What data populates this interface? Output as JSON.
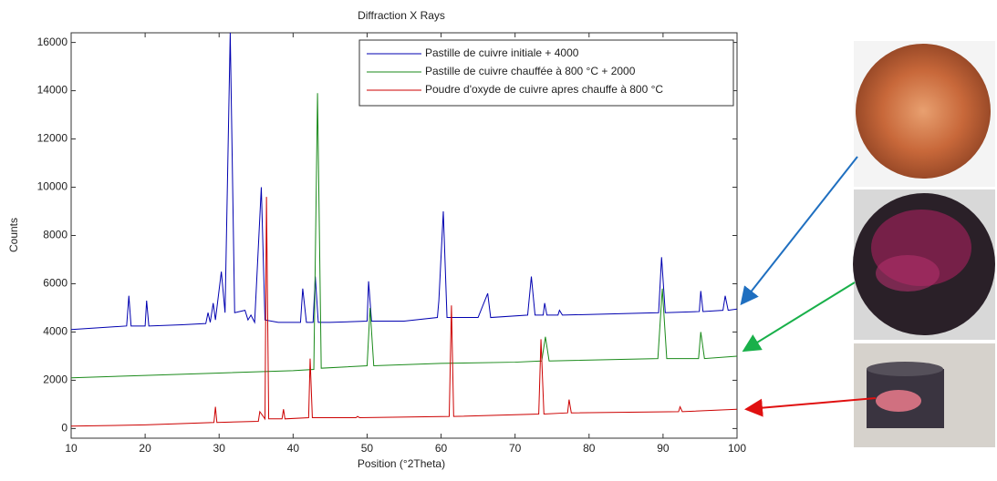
{
  "chart_data": {
    "type": "line",
    "title": "Diffraction X Rays",
    "x_label": "Position (°2Theta)",
    "y_label": "Counts",
    "xlim": [
      10,
      100
    ],
    "ylim": [
      -400,
      16400
    ],
    "xticks": [
      10,
      20,
      30,
      40,
      50,
      60,
      70,
      80,
      90,
      100
    ],
    "yticks": [
      0,
      2000,
      4000,
      6000,
      8000,
      10000,
      12000,
      14000,
      16000
    ],
    "legend": "upper right",
    "series": [
      {
        "name": "Pastille de cuivre initiale + 4000",
        "color": "#0000b0",
        "x": [
          10,
          15,
          17.5,
          17.8,
          18.1,
          20,
          20.2,
          20.5,
          25,
          28.2,
          28.5,
          28.8,
          29.2,
          29.5,
          30.3,
          30.8,
          31.5,
          32.1,
          33.5,
          33.9,
          34.3,
          34.8,
          35.7,
          36.2,
          38,
          41,
          41.3,
          41.8,
          42.7,
          43,
          43.4,
          45,
          50,
          50.2,
          50.6,
          55,
          59.5,
          59.7,
          60.3,
          60.8,
          65,
          66.3,
          66.7,
          71.7,
          72.2,
          72.7,
          73.8,
          74,
          74.3,
          75.8,
          76,
          76.4,
          89.4,
          89.8,
          90.3,
          94.9,
          95.1,
          95.4,
          98.1,
          98.4,
          98.8,
          100
        ],
        "values": [
          4100,
          4200,
          4250,
          5500,
          4250,
          4250,
          5300,
          4250,
          4300,
          4350,
          4800,
          4400,
          5200,
          4500,
          6500,
          4800,
          16400,
          4800,
          4900,
          4500,
          4700,
          4400,
          10000,
          4500,
          4400,
          4400,
          5800,
          4400,
          4400,
          6300,
          4400,
          4400,
          4450,
          6100,
          4450,
          4450,
          4600,
          5300,
          9000,
          4600,
          4600,
          5600,
          4600,
          4700,
          6300,
          4700,
          4700,
          5200,
          4700,
          4700,
          4900,
          4700,
          4800,
          7100,
          4800,
          4850,
          5700,
          4850,
          4900,
          5500,
          4900,
          4950
        ]
      },
      {
        "name": "Pastille de cuivre chauffée à 800 °C + 2000",
        "color": "#1a8a1a",
        "x": [
          10,
          20,
          30,
          40,
          42.8,
          43.3,
          43.8,
          50,
          50.4,
          50.9,
          60,
          70,
          73.6,
          74.1,
          74.6,
          89.3,
          89.9,
          90.5,
          94.8,
          95.1,
          95.6,
          100
        ],
        "values": [
          2100,
          2200,
          2300,
          2400,
          2450,
          13900,
          2500,
          2600,
          5000,
          2600,
          2700,
          2750,
          2800,
          3800,
          2800,
          2900,
          5800,
          2900,
          2900,
          4000,
          2900,
          3000
        ]
      },
      {
        "name": "Poudre d'oxyde de cuivre apres chauffe à 800 °C",
        "color": "#cc0000",
        "x": [
          10,
          20,
          29.3,
          29.5,
          29.7,
          35.3,
          35.5,
          36.2,
          36.4,
          36.7,
          38.5,
          38.7,
          38.9,
          42.1,
          42.3,
          42.6,
          48.5,
          48.7,
          49,
          61.1,
          61.4,
          61.7,
          73.2,
          73.5,
          73.9,
          77.1,
          77.3,
          77.6,
          92.1,
          92.3,
          92.6,
          100
        ],
        "values": [
          100,
          150,
          250,
          900,
          250,
          300,
          700,
          400,
          9600,
          400,
          400,
          800,
          400,
          450,
          2900,
          450,
          450,
          500,
          450,
          500,
          5100,
          500,
          600,
          3700,
          600,
          650,
          1200,
          650,
          700,
          900,
          700,
          800
        ]
      }
    ]
  }
}
